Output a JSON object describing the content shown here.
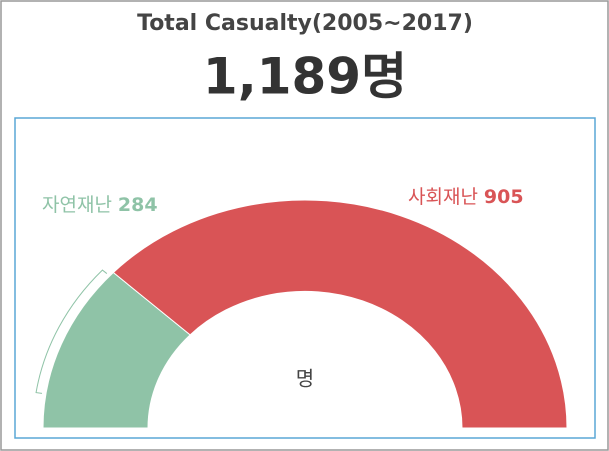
{
  "chart_data": {
    "type": "half-donut",
    "title": "Total Casualty(2005~2017)",
    "total_label": "1,189명",
    "center_label": "명",
    "categories": [
      "자연재난",
      "사회재난"
    ],
    "values": [
      284,
      905
    ],
    "colors": [
      "#8fc3a7",
      "#d95456"
    ]
  }
}
